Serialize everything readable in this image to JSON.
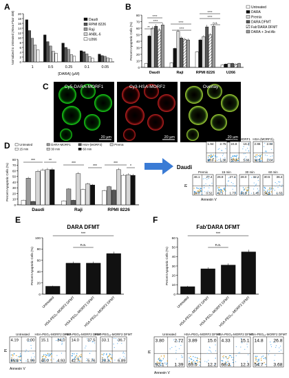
{
  "colors": {
    "black": "#111111",
    "dark": "#555555",
    "mid": "#9a9a9a",
    "light": "#d6d6d6",
    "white": "#ffffff",
    "star": "#1e7fd0"
  },
  "chart_data": [
    {
      "panel": "A",
      "type": "bar",
      "xlabel": "[DARA] (µM)",
      "ylabel": "Normalized to Untreated (Alexa Fluor 488)",
      "categories": [
        "1",
        "0.5",
        "0.25",
        "0.1",
        "0.05"
      ],
      "ylim": [
        0,
        20
      ],
      "yticks": [
        0,
        2,
        4,
        6,
        8,
        10,
        12,
        14,
        16,
        18,
        20
      ],
      "legend_position": "top-right",
      "series": [
        {
          "name": "Daudi",
          "values": [
            17.5,
            11.2,
            7.8,
            4.6,
            3.2
          ]
        },
        {
          "name": "RPMI 8226",
          "values": [
            13.0,
            8.4,
            6.0,
            4.2,
            2.6
          ]
        },
        {
          "name": "Raji",
          "values": [
            9.8,
            6.6,
            5.2,
            3.3,
            2.3
          ]
        },
        {
          "name": "ANBL-6",
          "values": [
            7.0,
            4.4,
            3.0,
            2.2,
            1.7
          ]
        },
        {
          "name": "U266",
          "values": [
            5.0,
            3.6,
            2.4,
            1.6,
            1.3
          ]
        }
      ]
    },
    {
      "panel": "B",
      "type": "bar",
      "ylabel": "Percent Apoptotic Cells (%)",
      "categories": [
        "Daudi",
        "Raji",
        "RPMI 8226",
        "U266"
      ],
      "ylim": [
        0,
        80
      ],
      "yticks": [
        0,
        10,
        20,
        30,
        40,
        50,
        60,
        70,
        80
      ],
      "legend_position": "top-right",
      "series": [
        {
          "name": "Untreated",
          "values": [
            6,
            7,
            24,
            4
          ]
        },
        {
          "name": "DARA",
          "values": [
            48,
            29,
            42,
            5
          ]
        },
        {
          "name": "Premix",
          "values": [
            60,
            55,
            47,
            6
          ]
        },
        {
          "name": "DARA DFMT",
          "values": [
            63,
            45,
            62,
            6
          ]
        },
        {
          "name": "Fab'DARA DFMT",
          "values": [
            57,
            43,
            50,
            5
          ]
        },
        {
          "name": "DARA + 2nd Ab",
          "values": [
            65,
            42,
            63,
            6
          ]
        }
      ],
      "annotations": [
        "****",
        "****",
        "**",
        "****",
        "****",
        "****",
        "****",
        "n.s."
      ]
    },
    {
      "panel": "D",
      "type": "bar",
      "ylabel": "Percent Apoptotic Cells (%)",
      "categories": [
        "Daudi",
        "Raji",
        "RPMI 8226"
      ],
      "ylim": [
        0,
        80
      ],
      "yticks": [
        0,
        10,
        20,
        30,
        40,
        50,
        60,
        70,
        80
      ],
      "legend_position": "top",
      "series": [
        {
          "name": "Untreated",
          "values": [
            8,
            7,
            25
          ]
        },
        {
          "name": "DARA-MORF1",
          "values": [
            47,
            28,
            32
          ]
        },
        {
          "name": "HSA-(MORF2)",
          "values": [
            6,
            8,
            26
          ]
        },
        {
          "name": "Premix",
          "values": [
            59,
            55,
            62
          ]
        },
        {
          "name": "15 min",
          "values": [
            61,
            27,
            52
          ]
        },
        {
          "name": "30 min",
          "values": [
            62,
            37,
            53
          ]
        },
        {
          "name": "60 min",
          "values": [
            62,
            35,
            52
          ]
        }
      ],
      "annotations": [
        "***",
        "**",
        "***",
        "***",
        "***",
        "*"
      ]
    },
    {
      "panel": "E",
      "type": "bar",
      "title": "DARA DFMT",
      "ylabel": "Percent Apoptotic Cells (%)",
      "categories": [
        "Untreated",
        "HSA-PEG₂-MORF2 DFMT",
        "HSA-PEG₆-MORF2 DFMT",
        "HSA-PEG₁₂-MORF2 DFMT"
      ],
      "ylim": [
        0,
        100
      ],
      "yticks": [
        0,
        20,
        40,
        60,
        80,
        100
      ],
      "values": [
        14,
        55,
        55,
        72
      ],
      "annotations": [
        "***",
        "n.s."
      ]
    },
    {
      "panel": "F",
      "type": "bar",
      "title": "Fab'DARA DFMT",
      "ylabel": "Percent Apoptotic Cells (%)",
      "categories": [
        "Untreated",
        "HSA-PEG₂-MORF2 DFMT",
        "HSA-PEG₆-MORF2 DFMT",
        "HSA-PEG₁₂-MORF2 DFMT"
      ],
      "ylim": [
        0,
        60
      ],
      "yticks": [
        0,
        10,
        20,
        30,
        40,
        50,
        60
      ],
      "values": [
        8,
        27,
        31,
        45
      ],
      "annotations": [
        "***",
        "n.s."
      ]
    }
  ],
  "panel_letters": {
    "a": "A",
    "b": "B",
    "c": "C",
    "d": "D",
    "e": "E",
    "f": "F"
  },
  "micro": {
    "titles": [
      "Cy5-DARA-MORF1",
      "Cy3-HSA-MORF2",
      "Overlay"
    ],
    "scale": "20 µm"
  },
  "daudi_arrow": "Daudi",
  "flow_d": {
    "titles": [
      "Untreated",
      "DARA-MORF1",
      "HSA-(MORF2)₂",
      "Premix",
      "15 min",
      "30 min",
      "60 min"
    ],
    "quadrants": [
      [
        "1.94",
        "2.75",
        "93.9",
        "1.38"
      ],
      [
        "24.8",
        "16.3",
        "53.2",
        "5.66"
      ],
      [
        "2.86",
        "2.84",
        "92.3",
        "2.04"
      ],
      [
        "46.1",
        "27.4",
        "26.0",
        "0.52"
      ],
      [
        "26.9",
        "27.2",
        "42.1",
        "1.73"
      ],
      [
        "28.0",
        "32.2",
        "38.3",
        "1.45"
      ],
      [
        "30.5",
        "36.4",
        "34.5",
        "1.63"
      ]
    ],
    "pi": "PI",
    "annexin": "Annexin V"
  },
  "flow_e": {
    "titles": [
      "Untreated",
      "HSA-PEG₂-MORF2 DFMT",
      "HSA-PEG₆-MORF2 DFMT",
      "HSA-PEG₁₂-MORF2 DFMT"
    ],
    "quadrants": [
      [
        "4.19",
        "0.00",
        "85.8",
        "1.99"
      ],
      [
        "15.1",
        "34.0",
        "46.0",
        "4.93"
      ],
      [
        "14.0",
        "37.5",
        "42.7",
        "5.76"
      ],
      [
        "33.1",
        "36.7",
        "23.3",
        "6.89"
      ]
    ],
    "pi": "PI",
    "annexin": "Annexin V"
  },
  "flow_f": {
    "titles": [
      "Untreated",
      "HSA-PEG₂-MORF2 DFMT",
      "HSA-PEG₆-MORF2 DFMT",
      "HSA-PEG₁₂-MORF2 DFMT"
    ],
    "quadrants": [
      [
        "3.80",
        "2.72",
        "92.1",
        "1.39"
      ],
      [
        "3.89",
        "15.0",
        "69.0",
        "12.2"
      ],
      [
        "4.33",
        "15.1",
        "68.3",
        "12.3"
      ],
      [
        "14.8",
        "26.8",
        "54.7",
        "3.68"
      ]
    ],
    "pi": "PI",
    "annexin": "Annexin V"
  }
}
